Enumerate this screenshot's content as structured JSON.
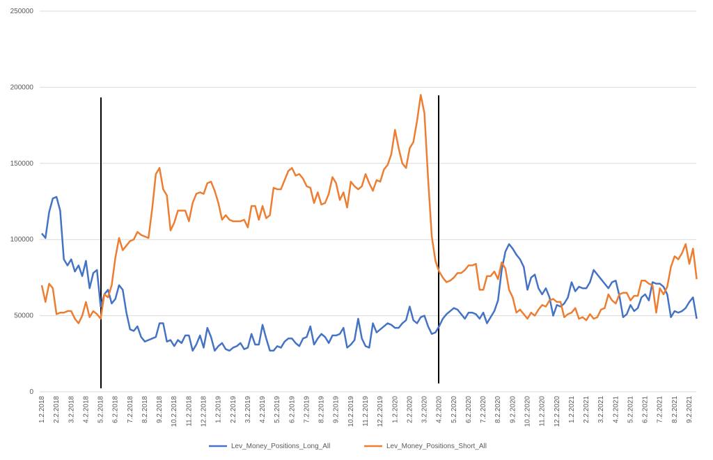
{
  "chart_data": {
    "type": "line",
    "categories": [
      "1.2.2018",
      null,
      null,
      null,
      "2.2.2018",
      null,
      null,
      null,
      "3.2.2018",
      null,
      null,
      null,
      "4.2.2018",
      null,
      null,
      null,
      "5.2.2018",
      null,
      null,
      null,
      "6.2.2018",
      null,
      null,
      null,
      "7.2.2018",
      null,
      null,
      null,
      "8.2.2018",
      null,
      null,
      null,
      "9.2.2018",
      null,
      null,
      null,
      "10.2.2018",
      null,
      null,
      null,
      "11.2.2018",
      null,
      null,
      null,
      "12.2.2018",
      null,
      null,
      null,
      "1.2.2019",
      null,
      null,
      null,
      "2.2.2019",
      null,
      null,
      null,
      "3.2.2019",
      null,
      null,
      null,
      "4.2.2019",
      null,
      null,
      null,
      "5.2.2019",
      null,
      null,
      null,
      "6.2.2019",
      null,
      null,
      null,
      "7.2.2019",
      null,
      null,
      null,
      "8.2.2019",
      null,
      null,
      null,
      "9.2.2019",
      null,
      null,
      null,
      "10.2.2019",
      null,
      null,
      null,
      "11.2.2019",
      null,
      null,
      null,
      "12.2.2019",
      null,
      null,
      null,
      "1.2.2020",
      null,
      null,
      null,
      "2.2.2020",
      null,
      null,
      null,
      "3.2.2020",
      null,
      null,
      null,
      "4.2.2020",
      null,
      null,
      null,
      "5.2.2020",
      null,
      null,
      null,
      "6.2.2020",
      null,
      null,
      null,
      "7.2.2020",
      null,
      null,
      null,
      "8.2.2020",
      null,
      null,
      null,
      "9.2.2020",
      null,
      null,
      null,
      "10.2.2020",
      null,
      null,
      null,
      "11.2.2020",
      null,
      null,
      null,
      "12.2.2020",
      null,
      null,
      null,
      "1.2.2021",
      null,
      null,
      null,
      "2.2.2021",
      null,
      null,
      null,
      "3.2.2021",
      null,
      null,
      null,
      "4.2.2021",
      null,
      null,
      null,
      "5.2.2021",
      null,
      null,
      null,
      "6.2.2021",
      null,
      null,
      null,
      "7.2.2021",
      null,
      null,
      null,
      "8.2.2021",
      null,
      null,
      null,
      "9.2.2021",
      null,
      null
    ],
    "series": [
      {
        "name": "Lev_Money_Positions_Long_All",
        "color": "#4472c4",
        "values": [
          104000,
          101000,
          118000,
          127000,
          128000,
          119000,
          87000,
          83000,
          87000,
          79000,
          83000,
          76000,
          86000,
          68000,
          78000,
          80000,
          56000,
          64000,
          67000,
          58000,
          61000,
          70000,
          67000,
          52000,
          41000,
          40000,
          43000,
          36000,
          33000,
          34000,
          35000,
          36000,
          45000,
          45000,
          33000,
          34000,
          30000,
          34000,
          32000,
          37000,
          37000,
          27000,
          31000,
          37000,
          29000,
          42000,
          36000,
          27000,
          30000,
          32000,
          28000,
          27000,
          29000,
          30000,
          32000,
          28000,
          29000,
          38000,
          31000,
          31000,
          44000,
          35000,
          27000,
          27000,
          30000,
          29000,
          33000,
          35000,
          35000,
          32000,
          30000,
          35000,
          36000,
          43000,
          31000,
          35000,
          38000,
          36000,
          32000,
          37000,
          37000,
          38000,
          42000,
          29000,
          31000,
          34000,
          48000,
          35000,
          30000,
          29000,
          45000,
          39000,
          41000,
          43000,
          45000,
          44000,
          42000,
          42000,
          45000,
          47000,
          56000,
          47000,
          45000,
          49000,
          50000,
          43000,
          38000,
          39000,
          43000,
          48000,
          51000,
          53000,
          55000,
          54000,
          51000,
          48000,
          52000,
          52000,
          51000,
          48000,
          52000,
          45000,
          49000,
          53000,
          60000,
          80000,
          92000,
          97000,
          94000,
          90000,
          87000,
          82000,
          67000,
          75000,
          77000,
          68000,
          64000,
          68000,
          62000,
          50000,
          57000,
          56000,
          58000,
          62000,
          72000,
          66000,
          69000,
          68000,
          68000,
          72000,
          80000,
          77000,
          74000,
          71000,
          68000,
          72000,
          73000,
          63000,
          49000,
          51000,
          57000,
          53000,
          55000,
          62000,
          64000,
          60000,
          72000,
          71000,
          71000,
          69000,
          64000,
          49000,
          53000,
          52000,
          53000,
          55000,
          59000,
          62000,
          48000
        ]
      },
      {
        "name": "Lev_Money_Positions_Short_All",
        "color": "#ed7d31",
        "values": [
          70000,
          59000,
          71000,
          68000,
          51000,
          52000,
          52000,
          53000,
          53000,
          48000,
          45000,
          50000,
          59000,
          49000,
          53000,
          51000,
          48000,
          64000,
          62000,
          70000,
          88000,
          101000,
          93000,
          96000,
          99000,
          100000,
          105000,
          103000,
          102000,
          101000,
          120000,
          143000,
          147000,
          133000,
          129000,
          106000,
          111000,
          119000,
          119000,
          119000,
          112000,
          124000,
          130000,
          131000,
          130000,
          137000,
          138000,
          132000,
          124000,
          113000,
          116000,
          113000,
          112000,
          112000,
          112000,
          113000,
          108000,
          122000,
          122000,
          113000,
          122000,
          114000,
          116000,
          134000,
          133000,
          133000,
          139000,
          145000,
          147000,
          142000,
          143000,
          140000,
          135000,
          134000,
          124000,
          131000,
          123000,
          124000,
          130000,
          141000,
          137000,
          126000,
          131000,
          121000,
          138000,
          135000,
          133000,
          135000,
          143000,
          137000,
          132000,
          139000,
          138000,
          146000,
          149000,
          156000,
          172000,
          160000,
          150000,
          147000,
          160000,
          164000,
          178000,
          195000,
          183000,
          140000,
          102000,
          86000,
          79000,
          75000,
          72000,
          73000,
          75000,
          78000,
          78000,
          80000,
          83000,
          83000,
          84000,
          67000,
          67000,
          76000,
          76000,
          79000,
          74000,
          85000,
          81000,
          67000,
          62000,
          52000,
          54000,
          51000,
          48000,
          52000,
          50000,
          54000,
          57000,
          56000,
          60000,
          61000,
          59000,
          59000,
          49000,
          51000,
          52000,
          55000,
          48000,
          49000,
          47000,
          51000,
          48000,
          49000,
          54000,
          55000,
          64000,
          60000,
          58000,
          64000,
          65000,
          65000,
          60000,
          63000,
          63000,
          73000,
          73000,
          71000,
          70000,
          52000,
          68000,
          64000,
          69000,
          82000,
          89000,
          87000,
          91000,
          97000,
          84000,
          94000,
          74000
        ]
      }
    ],
    "ylim": [
      0,
      250000
    ],
    "yticks": [
      0,
      50000,
      100000,
      150000,
      200000,
      250000
    ],
    "grid": true,
    "legend": "bottom"
  }
}
